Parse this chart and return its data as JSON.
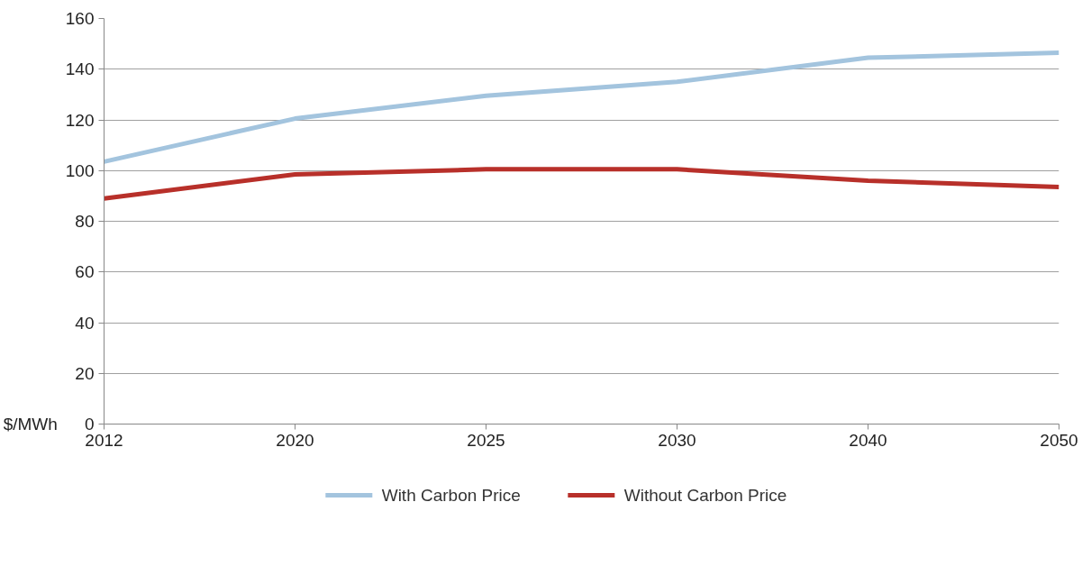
{
  "chart_data": {
    "type": "line",
    "ylabel": "$/MWh",
    "categories": [
      "2012",
      "2020",
      "2025",
      "2030",
      "2040",
      "2050"
    ],
    "series": [
      {
        "name": "With Carbon Price",
        "color": "#a3c4de",
        "values": [
          103.5,
          120.5,
          129.5,
          135,
          144.5,
          146.5
        ]
      },
      {
        "name": "Without Carbon Price",
        "color": "#b8302a",
        "values": [
          89,
          98.5,
          100.5,
          100.5,
          96,
          93.5
        ]
      }
    ],
    "ylim": [
      0,
      160
    ],
    "yticks": [
      0,
      20,
      40,
      60,
      80,
      100,
      120,
      140,
      160
    ],
    "grid": "y",
    "legend": "bottom",
    "marker": "none",
    "line_style": "solid"
  }
}
